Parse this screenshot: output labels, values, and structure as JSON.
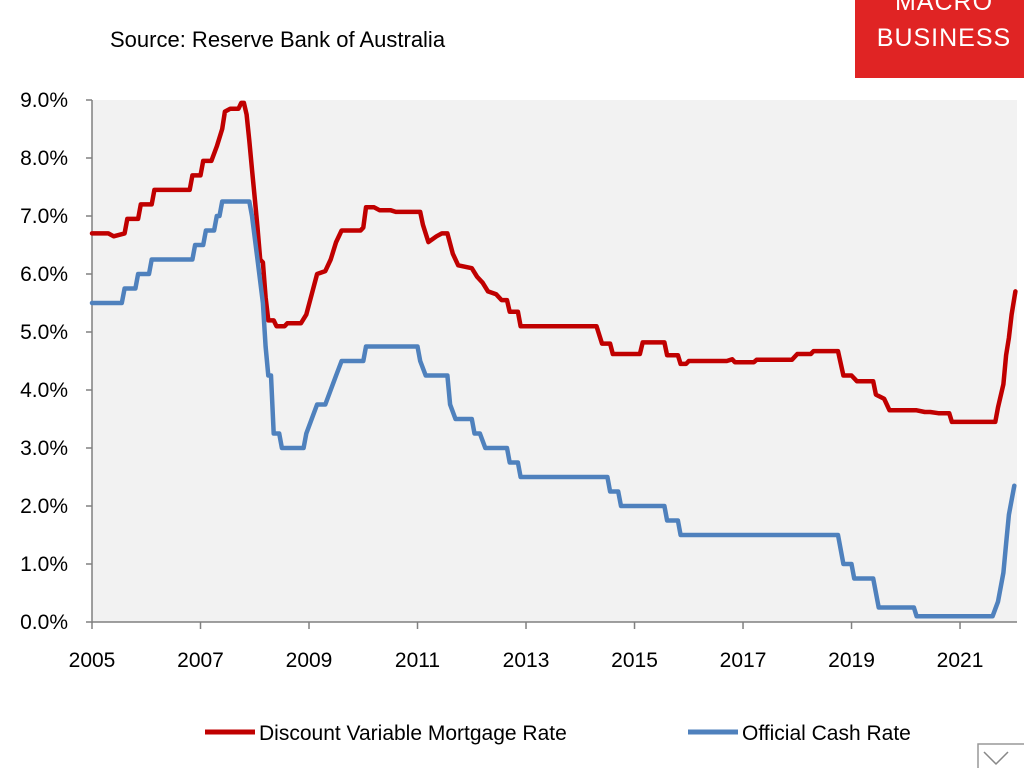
{
  "chart_data": {
    "type": "line",
    "title": "",
    "subtitle": "Source: Reserve Bank of Australia",
    "xlabel": "",
    "ylabel": "",
    "xlim": [
      2005,
      2022.05
    ],
    "ylim": [
      0,
      9
    ],
    "x_ticks": [
      "2005",
      "2007",
      "2009",
      "2011",
      "2013",
      "2015",
      "2017",
      "2019",
      "2021"
    ],
    "y_ticks": [
      "0.0%",
      "1.0%",
      "2.0%",
      "3.0%",
      "4.0%",
      "5.0%",
      "6.0%",
      "7.0%",
      "8.0%",
      "9.0%"
    ],
    "grid": false,
    "plot_background": "#f2f2f2",
    "legend_position": "bottom",
    "series": [
      {
        "name": "Discount Variable Mortgage Rate",
        "color": "#c00000",
        "points": [
          [
            2005.0,
            6.7
          ],
          [
            2005.3,
            6.7
          ],
          [
            2005.4,
            6.65
          ],
          [
            2005.6,
            6.7
          ],
          [
            2005.65,
            6.95
          ],
          [
            2005.85,
            6.95
          ],
          [
            2005.9,
            7.2
          ],
          [
            2006.1,
            7.2
          ],
          [
            2006.15,
            7.45
          ],
          [
            2006.35,
            7.45
          ],
          [
            2006.8,
            7.45
          ],
          [
            2006.85,
            7.7
          ],
          [
            2007.0,
            7.7
          ],
          [
            2007.05,
            7.95
          ],
          [
            2007.2,
            7.95
          ],
          [
            2007.3,
            8.2
          ],
          [
            2007.4,
            8.5
          ],
          [
            2007.45,
            8.8
          ],
          [
            2007.55,
            8.85
          ],
          [
            2007.7,
            8.85
          ],
          [
            2007.75,
            8.95
          ],
          [
            2007.8,
            8.95
          ],
          [
            2007.85,
            8.75
          ],
          [
            2007.9,
            8.3
          ],
          [
            2007.95,
            7.8
          ],
          [
            2008.0,
            7.3
          ],
          [
            2008.05,
            6.8
          ],
          [
            2008.1,
            6.25
          ],
          [
            2008.15,
            6.2
          ],
          [
            2008.2,
            5.6
          ],
          [
            2008.25,
            5.2
          ],
          [
            2008.35,
            5.2
          ],
          [
            2008.4,
            5.1
          ],
          [
            2008.55,
            5.1
          ],
          [
            2008.6,
            5.15
          ],
          [
            2008.85,
            5.15
          ],
          [
            2008.95,
            5.3
          ],
          [
            2009.05,
            5.65
          ],
          [
            2009.15,
            6.0
          ],
          [
            2009.3,
            6.05
          ],
          [
            2009.4,
            6.25
          ],
          [
            2009.5,
            6.55
          ],
          [
            2009.6,
            6.75
          ],
          [
            2009.95,
            6.75
          ],
          [
            2010.0,
            6.8
          ],
          [
            2010.05,
            7.15
          ],
          [
            2010.2,
            7.15
          ],
          [
            2010.3,
            7.1
          ],
          [
            2010.5,
            7.1
          ],
          [
            2010.6,
            7.07
          ],
          [
            2011.05,
            7.07
          ],
          [
            2011.1,
            6.85
          ],
          [
            2011.2,
            6.55
          ],
          [
            2011.35,
            6.65
          ],
          [
            2011.45,
            6.7
          ],
          [
            2011.55,
            6.7
          ],
          [
            2011.65,
            6.35
          ],
          [
            2011.75,
            6.15
          ],
          [
            2012.0,
            6.1
          ],
          [
            2012.1,
            5.95
          ],
          [
            2012.2,
            5.85
          ],
          [
            2012.3,
            5.7
          ],
          [
            2012.45,
            5.65
          ],
          [
            2012.55,
            5.55
          ],
          [
            2012.65,
            5.55
          ],
          [
            2012.7,
            5.35
          ],
          [
            2012.85,
            5.35
          ],
          [
            2012.9,
            5.1
          ],
          [
            2013.1,
            5.1
          ],
          [
            2014.3,
            5.1
          ],
          [
            2014.4,
            4.8
          ],
          [
            2014.55,
            4.8
          ],
          [
            2014.6,
            4.62
          ],
          [
            2015.1,
            4.62
          ],
          [
            2015.15,
            4.82
          ],
          [
            2015.55,
            4.82
          ],
          [
            2015.6,
            4.6
          ],
          [
            2015.8,
            4.6
          ],
          [
            2015.85,
            4.45
          ],
          [
            2015.95,
            4.45
          ],
          [
            2016.0,
            4.5
          ],
          [
            2016.7,
            4.5
          ],
          [
            2016.8,
            4.53
          ],
          [
            2016.85,
            4.48
          ],
          [
            2017.2,
            4.48
          ],
          [
            2017.25,
            4.52
          ],
          [
            2017.9,
            4.52
          ],
          [
            2018.0,
            4.62
          ],
          [
            2018.25,
            4.62
          ],
          [
            2018.3,
            4.67
          ],
          [
            2018.75,
            4.67
          ],
          [
            2018.85,
            4.25
          ],
          [
            2019.0,
            4.25
          ],
          [
            2019.1,
            4.15
          ],
          [
            2019.4,
            4.15
          ],
          [
            2019.45,
            3.92
          ],
          [
            2019.6,
            3.85
          ],
          [
            2019.7,
            3.65
          ],
          [
            2020.0,
            3.65
          ],
          [
            2020.2,
            3.65
          ],
          [
            2020.35,
            3.62
          ],
          [
            2020.45,
            3.62
          ],
          [
            2020.6,
            3.6
          ],
          [
            2020.8,
            3.6
          ],
          [
            2020.85,
            3.45
          ],
          [
            2021.05,
            3.45
          ],
          [
            2021.6,
            3.45
          ],
          [
            2021.65,
            3.45
          ],
          [
            2021.7,
            3.7
          ],
          [
            2021.8,
            4.1
          ],
          [
            2021.85,
            4.6
          ],
          [
            2021.9,
            4.9
          ],
          [
            2021.95,
            5.3
          ],
          [
            2022.02,
            5.7
          ]
        ]
      },
      {
        "name": "Official Cash Rate",
        "color": "#4f81bd",
        "points": [
          [
            2005.0,
            5.5
          ],
          [
            2005.55,
            5.5
          ],
          [
            2005.6,
            5.75
          ],
          [
            2005.8,
            5.75
          ],
          [
            2005.85,
            6.0
          ],
          [
            2006.05,
            6.0
          ],
          [
            2006.1,
            6.25
          ],
          [
            2006.85,
            6.25
          ],
          [
            2006.9,
            6.5
          ],
          [
            2007.05,
            6.5
          ],
          [
            2007.1,
            6.75
          ],
          [
            2007.25,
            6.75
          ],
          [
            2007.3,
            7.0
          ],
          [
            2007.35,
            7.0
          ],
          [
            2007.4,
            7.25
          ],
          [
            2007.9,
            7.25
          ],
          [
            2007.95,
            7.0
          ],
          [
            2008.05,
            6.25
          ],
          [
            2008.15,
            5.5
          ],
          [
            2008.2,
            4.75
          ],
          [
            2008.25,
            4.25
          ],
          [
            2008.3,
            4.25
          ],
          [
            2008.35,
            3.25
          ],
          [
            2008.45,
            3.25
          ],
          [
            2008.5,
            3.0
          ],
          [
            2008.9,
            3.0
          ],
          [
            2008.95,
            3.25
          ],
          [
            2009.05,
            3.5
          ],
          [
            2009.15,
            3.75
          ],
          [
            2009.3,
            3.75
          ],
          [
            2009.4,
            4.0
          ],
          [
            2009.5,
            4.25
          ],
          [
            2009.6,
            4.5
          ],
          [
            2010.0,
            4.5
          ],
          [
            2010.05,
            4.75
          ],
          [
            2011.0,
            4.75
          ],
          [
            2011.05,
            4.5
          ],
          [
            2011.15,
            4.25
          ],
          [
            2011.55,
            4.25
          ],
          [
            2011.6,
            3.75
          ],
          [
            2011.7,
            3.5
          ],
          [
            2012.0,
            3.5
          ],
          [
            2012.05,
            3.25
          ],
          [
            2012.15,
            3.25
          ],
          [
            2012.25,
            3.0
          ],
          [
            2012.65,
            3.0
          ],
          [
            2012.7,
            2.75
          ],
          [
            2012.85,
            2.75
          ],
          [
            2012.9,
            2.5
          ],
          [
            2013.0,
            2.5
          ],
          [
            2014.35,
            2.5
          ],
          [
            2014.5,
            2.5
          ],
          [
            2014.55,
            2.25
          ],
          [
            2014.7,
            2.25
          ],
          [
            2014.75,
            2.0
          ],
          [
            2015.55,
            2.0
          ],
          [
            2015.6,
            1.75
          ],
          [
            2015.8,
            1.75
          ],
          [
            2015.85,
            1.5
          ],
          [
            2016.55,
            1.5
          ],
          [
            2018.25,
            1.5
          ],
          [
            2018.7,
            1.5
          ],
          [
            2018.75,
            1.5
          ],
          [
            2018.85,
            1.0
          ],
          [
            2019.0,
            1.0
          ],
          [
            2019.05,
            0.75
          ],
          [
            2019.4,
            0.75
          ],
          [
            2019.5,
            0.25
          ],
          [
            2019.95,
            0.25
          ],
          [
            2020.0,
            0.25
          ],
          [
            2020.15,
            0.25
          ],
          [
            2020.2,
            0.1
          ],
          [
            2021.55,
            0.1
          ],
          [
            2021.6,
            0.1
          ],
          [
            2021.7,
            0.35
          ],
          [
            2021.8,
            0.85
          ],
          [
            2021.85,
            1.35
          ],
          [
            2021.9,
            1.85
          ],
          [
            2022.0,
            2.35
          ]
        ]
      }
    ]
  },
  "logo": {
    "line1": "MACRO",
    "line2": "BUSINESS",
    "color": "#e02424"
  }
}
